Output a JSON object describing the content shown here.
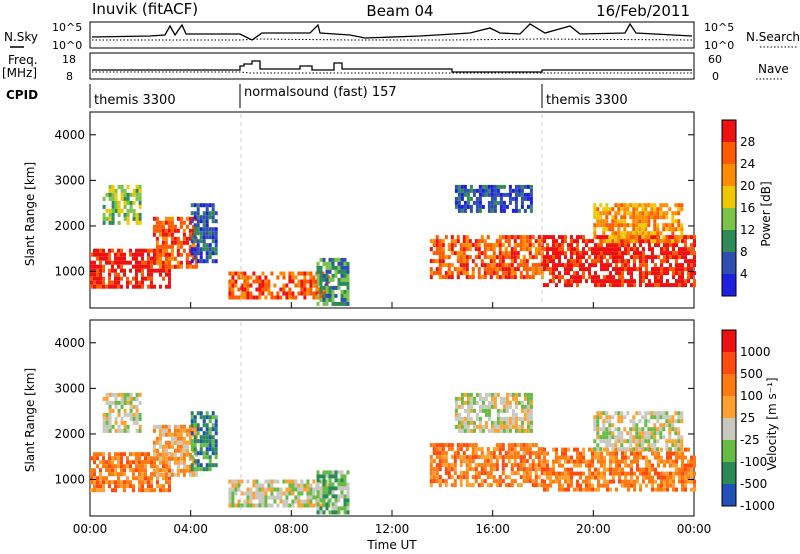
{
  "header": {
    "station": "Inuvik (fitACF)",
    "beam": "Beam 04",
    "date": "16/Feb/2011"
  },
  "top_labels": {
    "nsky": "N.Sky",
    "nsky_top": "10^5",
    "nsky_bottom": "10^0",
    "nsearch": "N.Search",
    "nsearch_top": "10^5",
    "nsearch_bottom": "10^0",
    "freq": "Freq.",
    "mhz": "[MHz]",
    "freq_top": "18",
    "freq_bottom": "8",
    "nave": "Nave",
    "nave_top": "60",
    "nave_bottom": "0",
    "cpid": "CPID"
  },
  "cpid_segments": [
    {
      "label": "themis 3300",
      "start_hour": 0
    },
    {
      "label": "normalsound (fast) 157",
      "start_hour": 6
    },
    {
      "label": "themis 3300",
      "start_hour": 18
    }
  ],
  "colors": {
    "power": [
      "#1f1fe0",
      "#2f4fb0",
      "#2e8b57",
      "#7cc34a",
      "#f0c800",
      "#ff8c00",
      "#ff5a00",
      "#ee1111"
    ],
    "velocity": [
      "#2050b8",
      "#2a8a55",
      "#66bb44",
      "#c8c8c0",
      "#ffa030",
      "#ff7a10",
      "#ff4a10",
      "#ee1010"
    ]
  },
  "chart_data": [
    {
      "type": "heatmap",
      "title": "Power",
      "ylabel": "Slant Range [km]",
      "xlabel": "Time UT",
      "xlim": [
        0,
        24
      ],
      "ylim": [
        200,
        4500
      ],
      "x_ticks": [
        "00:00",
        "04:00",
        "08:00",
        "12:00",
        "16:00",
        "20:00",
        "00:00"
      ],
      "y_ticks": [
        "1000",
        "2000",
        "3000",
        "4000"
      ],
      "colorbar_label": "Power [dB]",
      "colorbar_ticks": [
        "4",
        "8",
        "12",
        "16",
        "20",
        "24",
        "28"
      ],
      "echo_regions": [
        {
          "x": [
            0.0,
            3.2
          ],
          "y": [
            700,
            1500
          ],
          "level": 7
        },
        {
          "x": [
            2.5,
            4.2
          ],
          "y": [
            1100,
            2200
          ],
          "level": 6
        },
        {
          "x": [
            0.5,
            2.0
          ],
          "y": [
            2100,
            2900
          ],
          "level": 3
        },
        {
          "x": [
            4.0,
            5.0
          ],
          "y": [
            1200,
            2500
          ],
          "level": 1
        },
        {
          "x": [
            5.5,
            9.5
          ],
          "y": [
            400,
            1000
          ],
          "level": 6
        },
        {
          "x": [
            9.0,
            10.2
          ],
          "y": [
            300,
            1300
          ],
          "level": 2
        },
        {
          "x": [
            13.5,
            18.0
          ],
          "y": [
            900,
            1800
          ],
          "level": 6
        },
        {
          "x": [
            14.5,
            17.5
          ],
          "y": [
            2300,
            2900
          ],
          "level": 1
        },
        {
          "x": [
            18.0,
            24.0
          ],
          "y": [
            700,
            1800
          ],
          "level": 7
        },
        {
          "x": [
            20.0,
            23.5
          ],
          "y": [
            1700,
            2500
          ],
          "level": 5
        }
      ]
    },
    {
      "type": "heatmap",
      "title": "Velocity",
      "ylabel": "Slant Range [km]",
      "xlabel": "Time UT",
      "xlim": [
        0,
        24
      ],
      "ylim": [
        200,
        4500
      ],
      "x_ticks": [
        "00:00",
        "04:00",
        "08:00",
        "12:00",
        "16:00",
        "20:00",
        "00:00"
      ],
      "y_ticks": [
        "1000",
        "2000",
        "3000",
        "4000"
      ],
      "colorbar_label": "Velocity [m s⁻¹]",
      "colorbar_ticks": [
        "1000",
        "500",
        "100",
        "25",
        "-25",
        "-100",
        "-500",
        "-1000"
      ],
      "echo_regions": [
        {
          "x": [
            0.0,
            3.2
          ],
          "y": [
            800,
            1600
          ],
          "level": 5
        },
        {
          "x": [
            2.5,
            4.2
          ],
          "y": [
            1100,
            2200
          ],
          "level": 4
        },
        {
          "x": [
            0.5,
            2.0
          ],
          "y": [
            2100,
            2900
          ],
          "level": 3
        },
        {
          "x": [
            4.0,
            5.0
          ],
          "y": [
            1200,
            2500
          ],
          "level": 1
        },
        {
          "x": [
            5.5,
            9.5
          ],
          "y": [
            400,
            1000
          ],
          "level": 3
        },
        {
          "x": [
            9.0,
            10.2
          ],
          "y": [
            300,
            1200
          ],
          "level": 2
        },
        {
          "x": [
            13.5,
            18.0
          ],
          "y": [
            900,
            1800
          ],
          "level": 5
        },
        {
          "x": [
            14.5,
            17.5
          ],
          "y": [
            2100,
            2900
          ],
          "level": 3
        },
        {
          "x": [
            18.0,
            24.0
          ],
          "y": [
            800,
            1700
          ],
          "level": 5
        },
        {
          "x": [
            20.0,
            23.5
          ],
          "y": [
            1700,
            2500
          ],
          "level": 3
        }
      ]
    }
  ]
}
